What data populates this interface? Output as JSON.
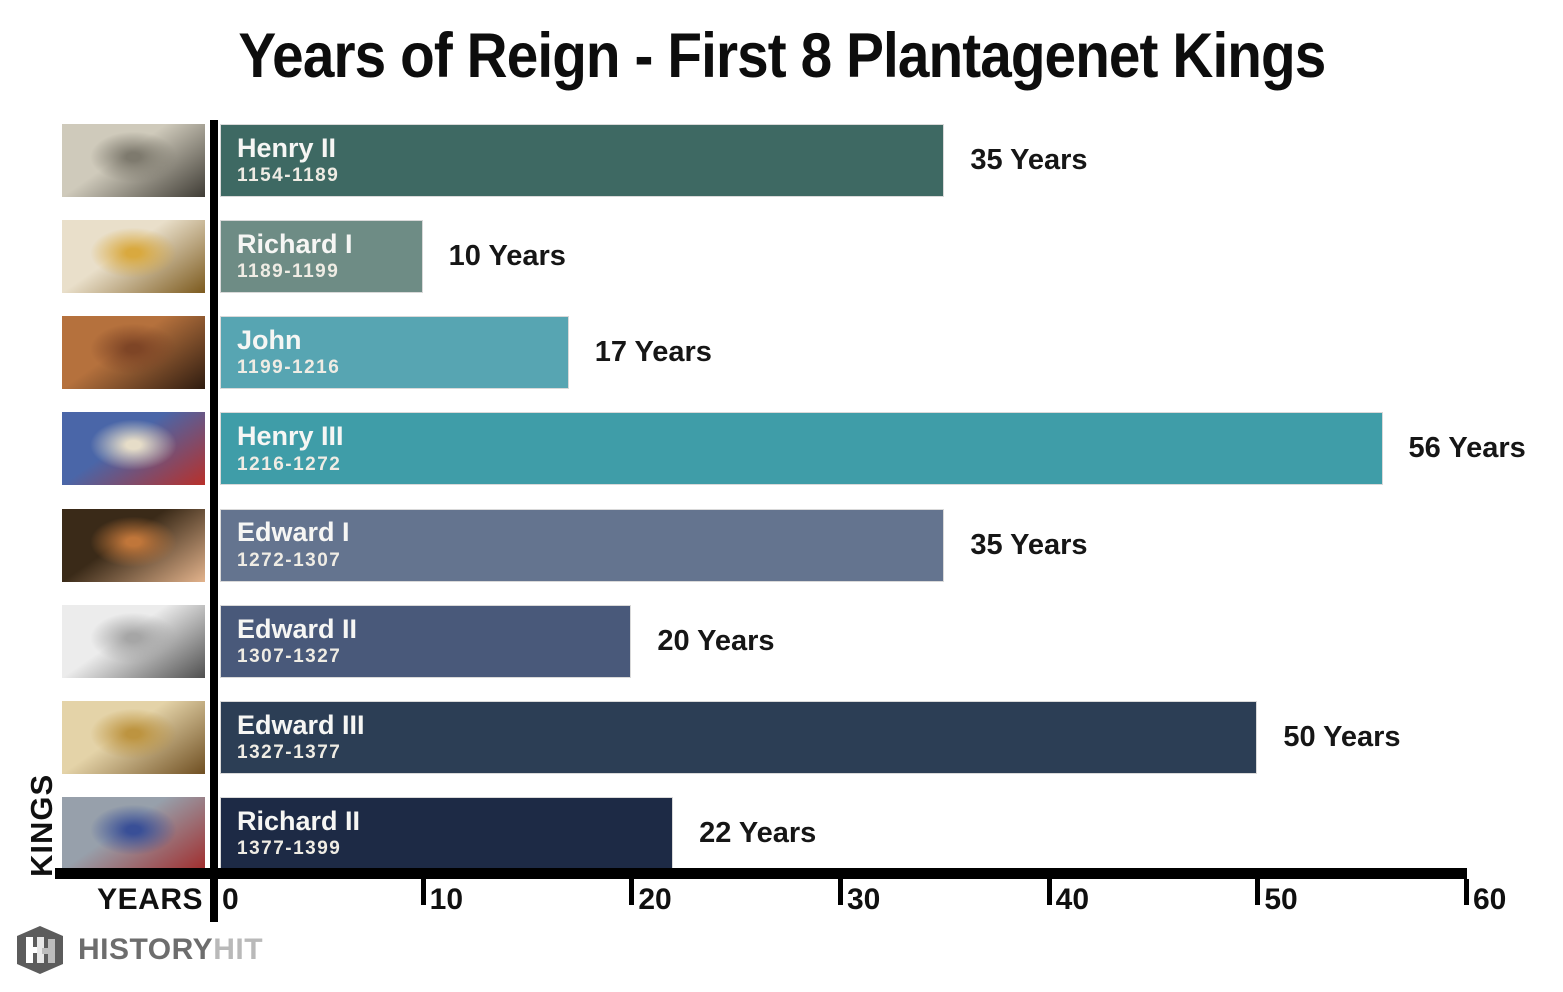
{
  "title": "Years of Reign - First 8 Plantagenet Kings",
  "axis": {
    "x_label": "YEARS",
    "y_label": "KINGS"
  },
  "kings": [
    {
      "name": "Henry II",
      "dates": "1154-1189",
      "years": 35,
      "value_label": "35 Years",
      "color": "#3E6963",
      "portrait_colors": [
        "#cfcabb",
        "#7e7a6e",
        "#3f3c35"
      ]
    },
    {
      "name": "Richard I",
      "dates": "1189-1199",
      "years": 10,
      "value_label": "10 Years",
      "color": "#6E8C85",
      "portrait_colors": [
        "#e9dfca",
        "#d9a93f",
        "#7c5a1e"
      ]
    },
    {
      "name": "John",
      "dates": "1199-1216",
      "years": 17,
      "value_label": "17 Years",
      "color": "#57A5B2",
      "portrait_colors": [
        "#b5713d",
        "#7e4526",
        "#2f1c10"
      ]
    },
    {
      "name": "Henry III",
      "dates": "1216-1272",
      "years": 56,
      "value_label": "56 Years",
      "color": "#3F9DA8",
      "portrait_colors": [
        "#4a66a8",
        "#e6ddc8",
        "#b8302a"
      ]
    },
    {
      "name": "Edward I",
      "dates": "1272-1307",
      "years": 35,
      "value_label": "35 Years",
      "color": "#64748F",
      "portrait_colors": [
        "#3a2a18",
        "#c0763a",
        "#e3b38c"
      ]
    },
    {
      "name": "Edward II",
      "dates": "1307-1327",
      "years": 20,
      "value_label": "20 Years",
      "color": "#49597A",
      "portrait_colors": [
        "#ececec",
        "#a6a6a6",
        "#4f4f4f"
      ]
    },
    {
      "name": "Edward III",
      "dates": "1327-1377",
      "years": 50,
      "value_label": "50 Years",
      "color": "#2C3E55",
      "portrait_colors": [
        "#e4d3a8",
        "#bd9440",
        "#6f4f22"
      ]
    },
    {
      "name": "Richard II",
      "dates": "1377-1399",
      "years": 22,
      "value_label": "22 Years",
      "color": "#1D2A45",
      "portrait_colors": [
        "#97a0ab",
        "#394f97",
        "#a12d2d"
      ]
    }
  ],
  "branding": {
    "logo_primary": "HISTORY",
    "logo_secondary": "HIT"
  },
  "chart_data": {
    "type": "bar",
    "orientation": "horizontal",
    "title": "Years of Reign - First 8 Plantagenet Kings",
    "categories": [
      "Henry II",
      "Richard I",
      "John",
      "Henry III",
      "Edward I",
      "Edward II",
      "Edward III",
      "Richard II"
    ],
    "category_sublabels": [
      "1154-1189",
      "1189-1199",
      "1199-1216",
      "1216-1272",
      "1272-1307",
      "1307-1327",
      "1327-1377",
      "1377-1399"
    ],
    "values": [
      35,
      10,
      17,
      56,
      35,
      20,
      50,
      22
    ],
    "bar_labels": [
      "35 Years",
      "10 Years",
      "17 Years",
      "56 Years",
      "35 Years",
      "20 Years",
      "50 Years",
      "22 Years"
    ],
    "bar_colors": [
      "#3E6963",
      "#6E8C85",
      "#57A5B2",
      "#3F9DA8",
      "#64748F",
      "#49597A",
      "#2C3E55",
      "#1D2A45"
    ],
    "xlabel": "YEARS",
    "ylabel": "KINGS",
    "xlim": [
      0,
      60
    ],
    "xticks": [
      0,
      10,
      20,
      30,
      40,
      50,
      60
    ],
    "grid": false,
    "legend": false
  }
}
